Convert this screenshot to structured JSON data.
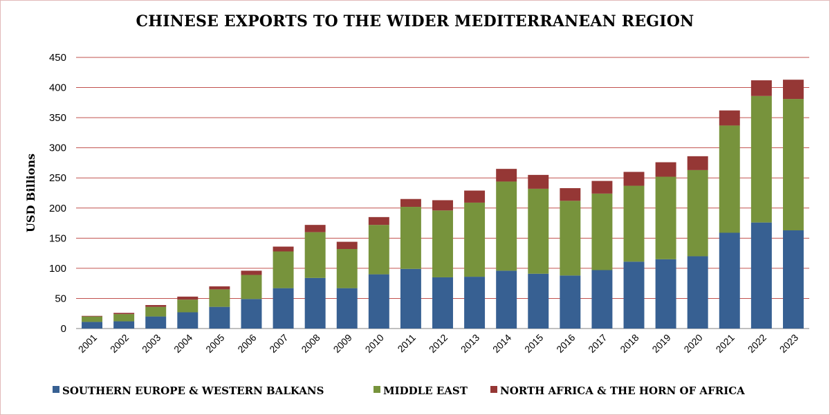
{
  "chart_data": {
    "type": "bar",
    "stacked": true,
    "title": "CHINESE EXPORTS TO THE WIDER MEDITERRANEAN REGION",
    "xlabel": "",
    "ylabel": "USD Billions",
    "ylim": [
      0,
      450
    ],
    "yticks": [
      0,
      50,
      100,
      150,
      200,
      250,
      300,
      350,
      400,
      450
    ],
    "grid": true,
    "legend_position": "bottom",
    "categories": [
      "2001",
      "2002",
      "2003",
      "2004",
      "2005",
      "2006",
      "2007",
      "2008",
      "2009",
      "2010",
      "2011",
      "2012",
      "2013",
      "2014",
      "2015",
      "2016",
      "2017",
      "2018",
      "2019",
      "2020",
      "2021",
      "2022",
      "2023"
    ],
    "series": [
      {
        "name": "SOUTHERN EUROPE & WESTERN BALKANS",
        "color": "#376092",
        "values": [
          11,
          12,
          20,
          27,
          36,
          49,
          67,
          84,
          67,
          90,
          99,
          85,
          86,
          96,
          91,
          88,
          97,
          111,
          115,
          120,
          159,
          176,
          163
        ]
      },
      {
        "name": "MIDDLE EAST",
        "color": "#77933c",
        "values": [
          9,
          12,
          16,
          21,
          29,
          40,
          61,
          76,
          65,
          82,
          103,
          111,
          123,
          148,
          141,
          124,
          127,
          126,
          137,
          143,
          178,
          210,
          218
        ]
      },
      {
        "name": "NORTH AFRICA & THE HORN OF AFRICA",
        "color": "#953735",
        "values": [
          1,
          2,
          3,
          5,
          5,
          7,
          8,
          12,
          12,
          13,
          13,
          17,
          20,
          21,
          23,
          21,
          21,
          23,
          24,
          23,
          25,
          26,
          32
        ]
      }
    ]
  }
}
